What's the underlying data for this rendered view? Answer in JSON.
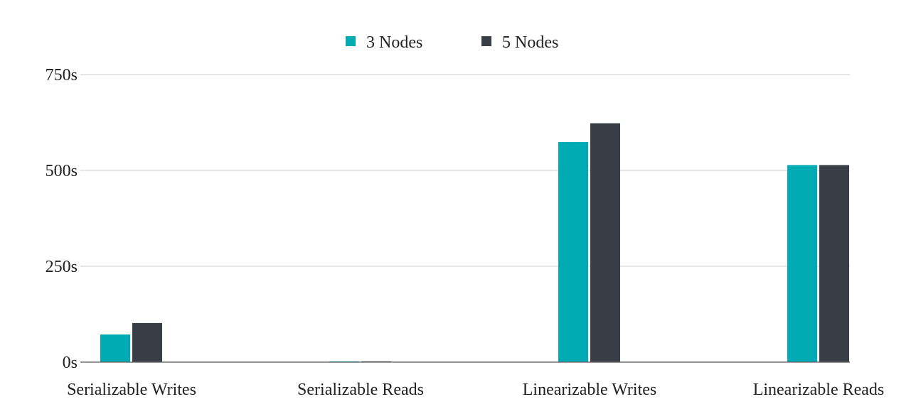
{
  "colors": {
    "series_3_nodes": "#00abb4",
    "series_5_nodes": "#393d45",
    "grid": "#cccccc",
    "text": "#222222"
  },
  "chart_data": {
    "type": "bar",
    "categories": [
      "Serializable Writes",
      "Serializable Reads",
      "Linearizable Writes",
      "Linearizable Reads"
    ],
    "series": [
      {
        "name": "3 Nodes",
        "values": [
          72,
          2,
          574,
          514
        ]
      },
      {
        "name": "5 Nodes",
        "values": [
          102,
          2,
          623,
          514
        ]
      }
    ],
    "y_ticks": [
      "0s",
      "250s",
      "500s",
      "750s"
    ],
    "y_tick_values": [
      0,
      250,
      500,
      750
    ],
    "ylim": [
      0,
      750
    ],
    "title": "",
    "xlabel": "",
    "ylabel": "",
    "grid": true,
    "legend_position": "top-center"
  }
}
